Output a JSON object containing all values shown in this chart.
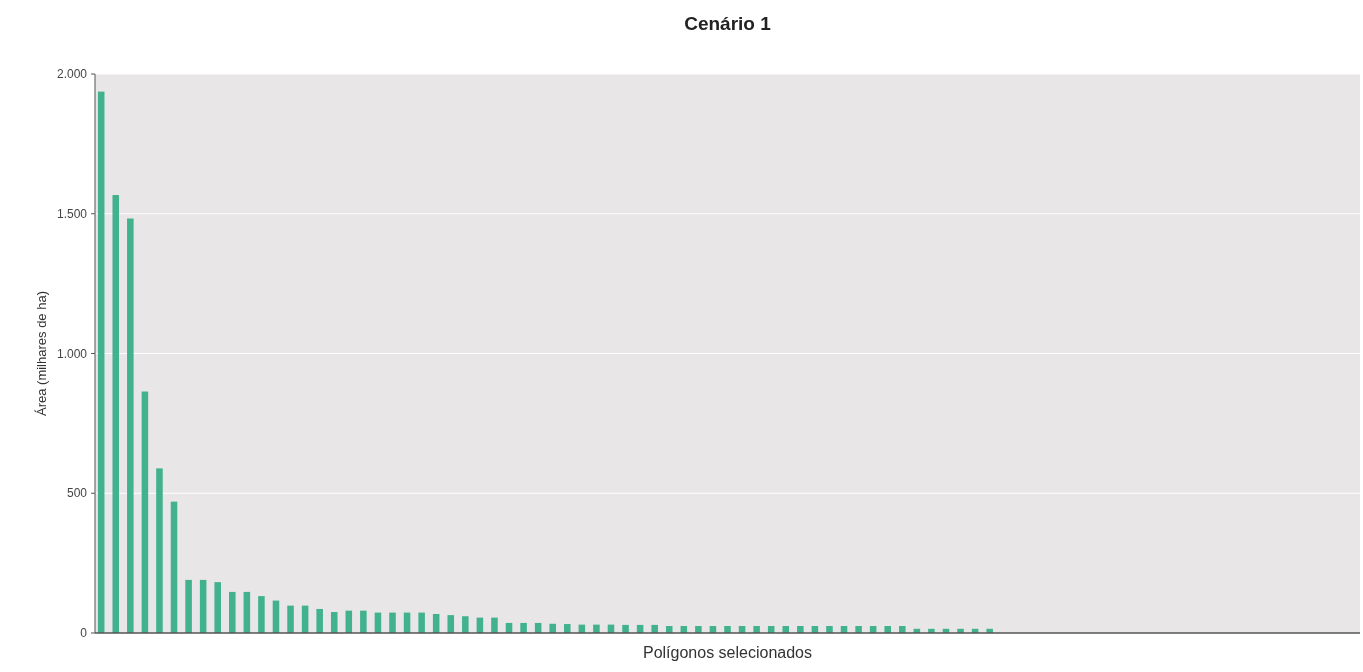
{
  "chart_data": {
    "type": "bar",
    "title": "Cenário 1",
    "xlabel": "Polígonos selecionados",
    "ylabel": "Área (milhares de ha)",
    "categories": [
      null,
      null,
      null,
      null,
      null,
      null,
      null,
      null,
      null,
      null,
      null,
      null,
      null,
      null,
      null,
      null,
      null,
      null,
      null,
      null,
      null,
      null,
      null,
      null,
      null,
      null,
      null,
      null,
      null,
      null,
      null,
      null,
      null,
      null,
      null,
      null,
      null,
      null,
      null,
      null,
      null,
      null,
      null,
      null,
      null,
      null,
      null,
      null,
      null,
      null,
      null,
      null,
      null,
      null,
      null,
      null,
      null,
      null,
      null,
      null,
      null,
      null,
      null,
      null,
      null,
      null,
      null,
      null,
      null,
      null,
      null,
      null,
      null,
      null,
      null,
      null,
      null,
      null,
      null,
      null,
      null,
      null,
      null,
      null,
      null,
      null,
      null
    ],
    "values": [
      1937,
      1567,
      1483,
      864,
      589,
      470,
      190,
      190,
      182,
      147,
      147,
      132,
      116,
      98,
      98,
      86,
      75,
      80,
      80,
      73,
      73,
      73,
      73,
      68,
      64,
      60,
      55,
      55,
      36,
      36,
      36,
      33,
      32,
      30,
      30,
      30,
      29,
      29,
      29,
      25,
      25,
      25,
      25,
      25,
      25,
      25,
      25,
      25,
      25,
      25,
      25,
      25,
      25,
      25,
      25,
      25,
      15,
      15,
      15,
      15,
      15,
      15,
      null,
      null,
      null,
      null,
      null,
      null,
      null,
      null,
      null,
      null,
      null,
      null,
      null,
      null,
      null,
      null,
      null,
      null,
      null,
      null,
      null,
      null,
      null,
      null,
      null
    ],
    "color": "#42b28e",
    "ylim": [
      0,
      2000
    ],
    "yticks": [
      0,
      500,
      {
        "value": 1000,
        "label": "1.000"
      },
      {
        "value": 1500,
        "label": "1.500"
      },
      {
        "value": 2000,
        "label": "2.000"
      }
    ],
    "grid": "y"
  }
}
